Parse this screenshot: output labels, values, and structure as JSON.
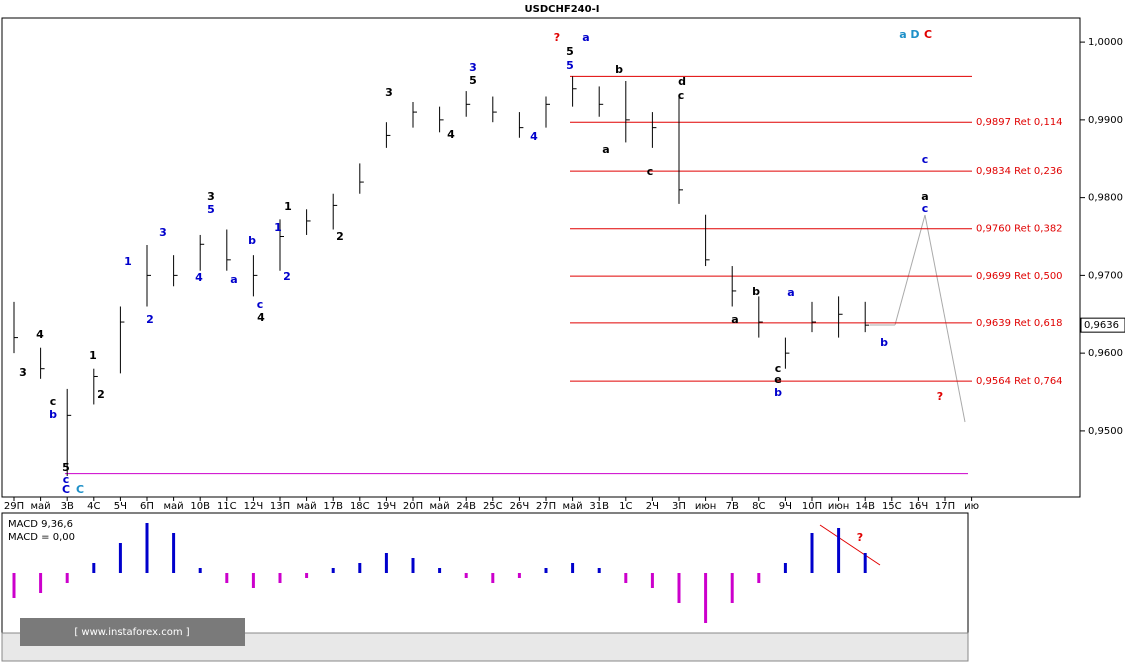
{
  "chart_data": {
    "type": "ohlc",
    "title": "USDCHF240-I",
    "categories": [
      "29П",
      "май",
      "3В",
      "4С",
      "5Ч",
      "6П",
      "май",
      "10В",
      "11С",
      "12Ч",
      "13П",
      "май",
      "17В",
      "18С",
      "19Ч",
      "20П",
      "май",
      "24В",
      "25С",
      "26Ч",
      "27П",
      "май",
      "31В",
      "1С",
      "2Ч",
      "3П",
      "июн",
      "7В",
      "8С",
      "9Ч",
      "10П",
      "июн",
      "14В",
      "15С",
      "16Ч",
      "17П",
      "ию"
    ],
    "high": [
      0.9666,
      0.9607,
      0.9554,
      0.958,
      0.966,
      0.9739,
      0.9726,
      0.9752,
      0.9759,
      0.9726,
      0.9772,
      0.9785,
      0.9805,
      0.9844,
      0.9897,
      0.9923,
      0.9917,
      0.9937,
      0.993,
      0.991,
      0.993,
      0.9956,
      0.9943,
      0.995,
      0.991,
      0.993,
      0.9778,
      0.9712,
      0.9673,
      0.962,
      0.9666,
      0.9673,
      0.9666,
      null,
      null,
      null,
      null
    ],
    "low": [
      0.96,
      0.9567,
      0.9442,
      0.9534,
      0.9574,
      0.966,
      0.9686,
      0.9706,
      0.9706,
      0.9673,
      0.9706,
      0.9752,
      0.9759,
      0.9805,
      0.9864,
      0.989,
      0.9884,
      0.9904,
      0.9897,
      0.9877,
      0.989,
      0.9917,
      0.9904,
      0.9871,
      0.9864,
      0.9792,
      0.9712,
      0.966,
      0.962,
      0.958,
      0.9627,
      0.962,
      0.9627,
      null,
      null,
      null,
      null
    ],
    "close": [
      0.962,
      0.958,
      0.952,
      0.957,
      0.964,
      0.97,
      0.97,
      0.974,
      0.972,
      0.97,
      0.975,
      0.977,
      0.979,
      0.982,
      0.988,
      0.991,
      0.99,
      0.992,
      0.991,
      0.989,
      0.992,
      0.994,
      0.992,
      0.99,
      0.989,
      0.981,
      0.972,
      0.968,
      0.964,
      0.96,
      0.964,
      0.965,
      0.9636,
      null,
      null,
      null,
      null
    ],
    "color": "#000000",
    "ylim": [
      0.9415,
      1.0031
    ],
    "yticks": [
      {
        "value": 1.0,
        "label": "1,0000"
      },
      {
        "value": 0.99,
        "label": "0,9900"
      },
      {
        "value": 0.98,
        "label": "0,9800"
      },
      {
        "value": 0.97,
        "label": "0,9700"
      },
      {
        "value": 0.96,
        "label": "0,9600"
      },
      {
        "value": 0.95,
        "label": "0,9500"
      }
    ],
    "last_price": {
      "value": 0.9636,
      "label": "0,9636"
    },
    "levels": [
      {
        "value": 0.9897,
        "label": "0,9897 Ret 0,114"
      },
      {
        "value": 0.9834,
        "label": "0,9834 Ret 0,236"
      },
      {
        "value": 0.976,
        "label": "0,9760 Ret 0,382"
      },
      {
        "value": 0.9699,
        "label": "0,9699 Ret 0,500"
      },
      {
        "value": 0.9639,
        "label": "0,9639 Ret 0,618"
      },
      {
        "value": 0.9564,
        "label": "0,9564 Ret 0,764"
      }
    ],
    "level_color": "#e00000",
    "top_line": 0.9956,
    "base_line": 0.9445,
    "base_color": "#cc00cc",
    "annotations": [
      {
        "text": "?",
        "color": "#e00000"
      },
      {
        "text": "5",
        "color": "#000000"
      },
      {
        "text": "a",
        "color": "#0000cc"
      },
      {
        "text": "5",
        "color": "#0000cc"
      },
      {
        "text": "a",
        "color": "#1e90c8"
      },
      {
        "text": "D",
        "color": "#1e90c8"
      },
      {
        "text": "C",
        "color": "#e00000"
      },
      {
        "text": "b",
        "color": "#000000"
      },
      {
        "text": "d",
        "color": "#000000"
      },
      {
        "text": "c",
        "color": "#000000"
      },
      {
        "text": "a",
        "color": "#000000"
      },
      {
        "text": "c",
        "color": "#000000"
      },
      {
        "text": "3",
        "color": "#000000"
      },
      {
        "text": "4",
        "color": "#000000"
      },
      {
        "text": "c",
        "color": "#000000"
      },
      {
        "text": "b",
        "color": "#0000cc"
      },
      {
        "text": "5",
        "color": "#000000"
      },
      {
        "text": "c",
        "color": "#0000cc"
      },
      {
        "text": "C",
        "color": "#0000cc"
      },
      {
        "text": "C",
        "color": "#1e90c8"
      },
      {
        "text": "1",
        "color": "#000000"
      },
      {
        "text": "2",
        "color": "#000000"
      },
      {
        "text": "1",
        "color": "#0000cc"
      },
      {
        "text": "2",
        "color": "#0000cc"
      },
      {
        "text": "3",
        "color": "#0000cc"
      },
      {
        "text": "4",
        "color": "#0000cc"
      },
      {
        "text": "a",
        "color": "#0000cc"
      },
      {
        "text": "3",
        "color": "#000000"
      },
      {
        "text": "5",
        "color": "#0000cc"
      },
      {
        "text": "b",
        "color": "#0000cc"
      },
      {
        "text": "c",
        "color": "#0000cc"
      },
      {
        "text": "4",
        "color": "#000000"
      },
      {
        "text": "2",
        "color": "#0000cc"
      },
      {
        "text": "1",
        "color": "#0000cc"
      },
      {
        "text": "1",
        "color": "#000000"
      },
      {
        "text": "2",
        "color": "#000000"
      },
      {
        "text": "3",
        "color": "#000000"
      },
      {
        "text": "3",
        "color": "#0000cc"
      },
      {
        "text": "5",
        "color": "#000000"
      },
      {
        "text": "4",
        "color": "#000000"
      },
      {
        "text": "4",
        "color": "#0000cc"
      },
      {
        "text": "c",
        "color": "#0000cc"
      },
      {
        "text": "a",
        "color": "#000000"
      },
      {
        "text": "c",
        "color": "#0000cc"
      },
      {
        "text": "?",
        "color": "#e00000"
      },
      {
        "text": "a",
        "color": "#0000cc"
      },
      {
        "text": "b",
        "color": "#000000"
      },
      {
        "text": "a",
        "color": "#000000"
      },
      {
        "text": "c",
        "color": "#000000"
      },
      {
        "text": "e",
        "color": "#000000"
      },
      {
        "text": "b",
        "color": "#0000cc"
      },
      {
        "text": "b",
        "color": "#0000cc"
      },
      {
        "text": "?",
        "color": "#e00000"
      }
    ],
    "macd": {
      "title": "MACD 9,36,6",
      "value_label": "MACD = 0,00",
      "ylim": [
        -0.006,
        0.006
      ],
      "color_pos": "#0000cc",
      "color_neg": "#cc00cc",
      "values": [
        -0.0025,
        -0.002,
        -0.001,
        0.001,
        0.003,
        0.005,
        0.004,
        0.0005,
        -0.001,
        -0.0015,
        -0.001,
        -0.0005,
        0.0005,
        0.001,
        0.002,
        0.0015,
        0.0005,
        -0.0005,
        -0.001,
        -0.0005,
        0.0005,
        0.001,
        0.0005,
        -0.001,
        -0.0015,
        -0.003,
        -0.005,
        -0.003,
        -0.001,
        0.001,
        0.004,
        0.0045,
        0.002,
        null,
        null,
        null,
        null
      ]
    },
    "watermark": "[ www.instaforex.com ]"
  }
}
